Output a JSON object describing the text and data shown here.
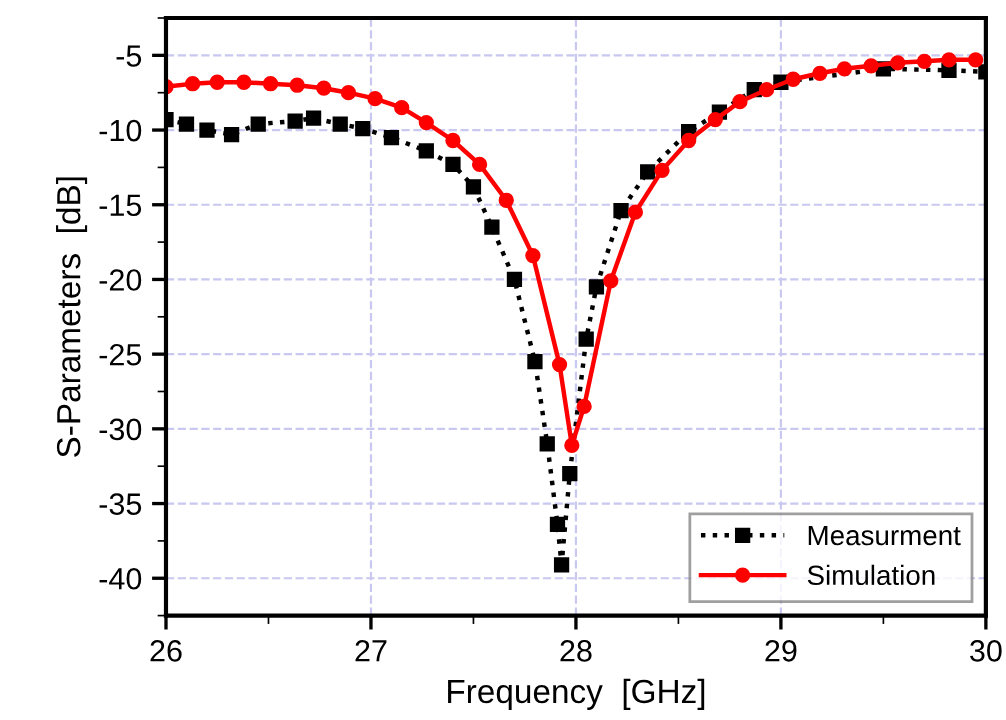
{
  "chart_data": {
    "type": "line",
    "xlabel": "Frequency  [GHz]",
    "ylabel": "S-Parameters  [dB]",
    "xlim": [
      26,
      30
    ],
    "xticks": [
      26,
      27,
      28,
      29,
      30
    ],
    "ylim": [
      -42.5,
      -2.5
    ],
    "yticks": [
      -40,
      -35,
      -30,
      -25,
      -20,
      -15,
      -10,
      -5
    ],
    "grid": true,
    "legend": "bottom right",
    "series": [
      {
        "name": "Measurment",
        "color": "#000000",
        "marker": "square",
        "line_style": "dotted",
        "x": [
          26.0,
          26.1,
          26.2,
          26.32,
          26.45,
          26.63,
          26.72,
          26.85,
          26.96,
          27.1,
          27.27,
          27.4,
          27.5,
          27.59,
          27.7,
          27.8,
          27.86,
          27.91,
          27.93,
          27.97,
          28.05,
          28.1,
          28.22,
          28.35,
          28.55,
          28.7,
          28.87,
          29.0,
          29.5,
          29.82,
          30.0
        ],
        "values": [
          -9.3,
          -9.6,
          -10.0,
          -10.3,
          -9.6,
          -9.4,
          -9.2,
          -9.6,
          -9.9,
          -10.5,
          -11.4,
          -12.3,
          -13.8,
          -16.5,
          -20.0,
          -25.5,
          -31.0,
          -36.4,
          -39.1,
          -33.0,
          -24.0,
          -20.5,
          -15.4,
          -12.8,
          -10.1,
          -8.8,
          -7.3,
          -6.8,
          -5.9,
          -6.0,
          -6.1
        ]
      },
      {
        "name": "Simulation",
        "color": "#ff0000",
        "marker": "circle",
        "line_style": "solid",
        "x": [
          26.0,
          26.13,
          26.25,
          26.38,
          26.51,
          26.64,
          26.77,
          26.89,
          27.02,
          27.15,
          27.27,
          27.4,
          27.53,
          27.66,
          27.79,
          27.92,
          27.98,
          28.04,
          28.17,
          28.29,
          28.42,
          28.55,
          28.68,
          28.8,
          28.93,
          29.06,
          29.19,
          29.31,
          29.44,
          29.57,
          29.7,
          29.82,
          29.95
        ],
        "values": [
          -7.1,
          -6.9,
          -6.8,
          -6.8,
          -6.9,
          -7.0,
          -7.2,
          -7.5,
          -7.9,
          -8.5,
          -9.5,
          -10.7,
          -12.3,
          -14.7,
          -18.4,
          -25.7,
          -31.1,
          -28.5,
          -20.1,
          -15.5,
          -12.7,
          -10.7,
          -9.3,
          -8.1,
          -7.3,
          -6.6,
          -6.2,
          -5.9,
          -5.7,
          -5.5,
          -5.4,
          -5.3,
          -5.3
        ]
      }
    ]
  }
}
